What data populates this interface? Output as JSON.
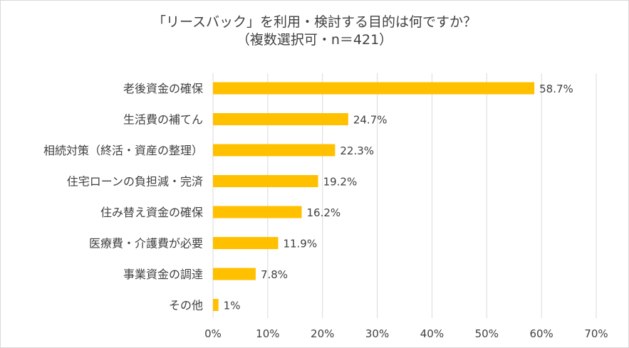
{
  "chart_data": {
    "type": "bar",
    "orientation": "horizontal",
    "title": "「リースバック」を利用・検討する目的は何ですか？",
    "subtitle": "（複数選択可・n＝421）",
    "categories": [
      "老後資金の確保",
      "生活費の補てん",
      "相続対策（終活・資産の整理）",
      "住宅ローンの負担減・完済",
      "住み替え資金の確保",
      "医療費・介護費が必要",
      "事業資金の調達",
      "その他"
    ],
    "values": [
      58.7,
      24.7,
      22.3,
      19.2,
      16.2,
      11.9,
      7.8,
      1
    ],
    "value_labels": [
      "58.7%",
      "24.7%",
      "22.3%",
      "19.2%",
      "16.2%",
      "11.9%",
      "7.8%",
      "1%"
    ],
    "xlim": [
      0,
      70
    ],
    "xticks": [
      0,
      10,
      20,
      30,
      40,
      50,
      60,
      70
    ],
    "xtick_labels": [
      "0%",
      "10%",
      "20%",
      "30%",
      "40%",
      "50%",
      "60%",
      "70%"
    ],
    "xlabel": "",
    "ylabel": "",
    "grid": true,
    "bar_color": "#FFC000"
  }
}
